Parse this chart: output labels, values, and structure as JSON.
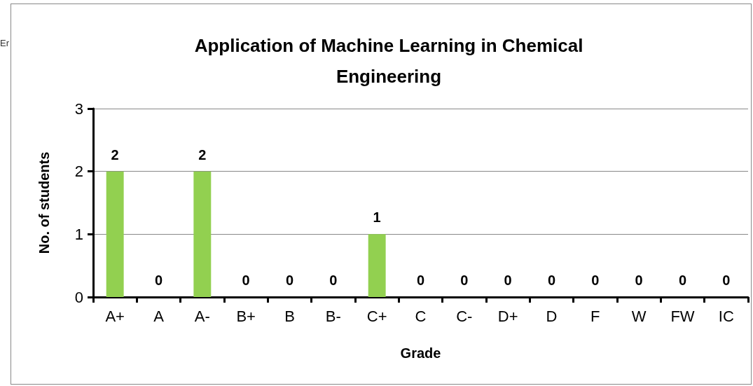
{
  "chart_data": {
    "type": "bar",
    "title": "Application of Machine Learning in Chemical\nEngineering",
    "xlabel": "Grade",
    "ylabel": "No. of students",
    "categories": [
      "A+",
      "A",
      "A-",
      "B+",
      "B",
      "B-",
      "C+",
      "C",
      "C-",
      "D+",
      "D",
      "F",
      "W",
      "FW",
      "IC"
    ],
    "values": [
      2,
      0,
      2,
      0,
      0,
      0,
      1,
      0,
      0,
      0,
      0,
      0,
      0,
      0,
      0
    ],
    "color": "#92d050",
    "ylim": [
      0,
      3
    ],
    "yticks": [
      0,
      1,
      2,
      3
    ],
    "grid": "y",
    "data_labels": true,
    "annotations": [
      "Er"
    ]
  }
}
